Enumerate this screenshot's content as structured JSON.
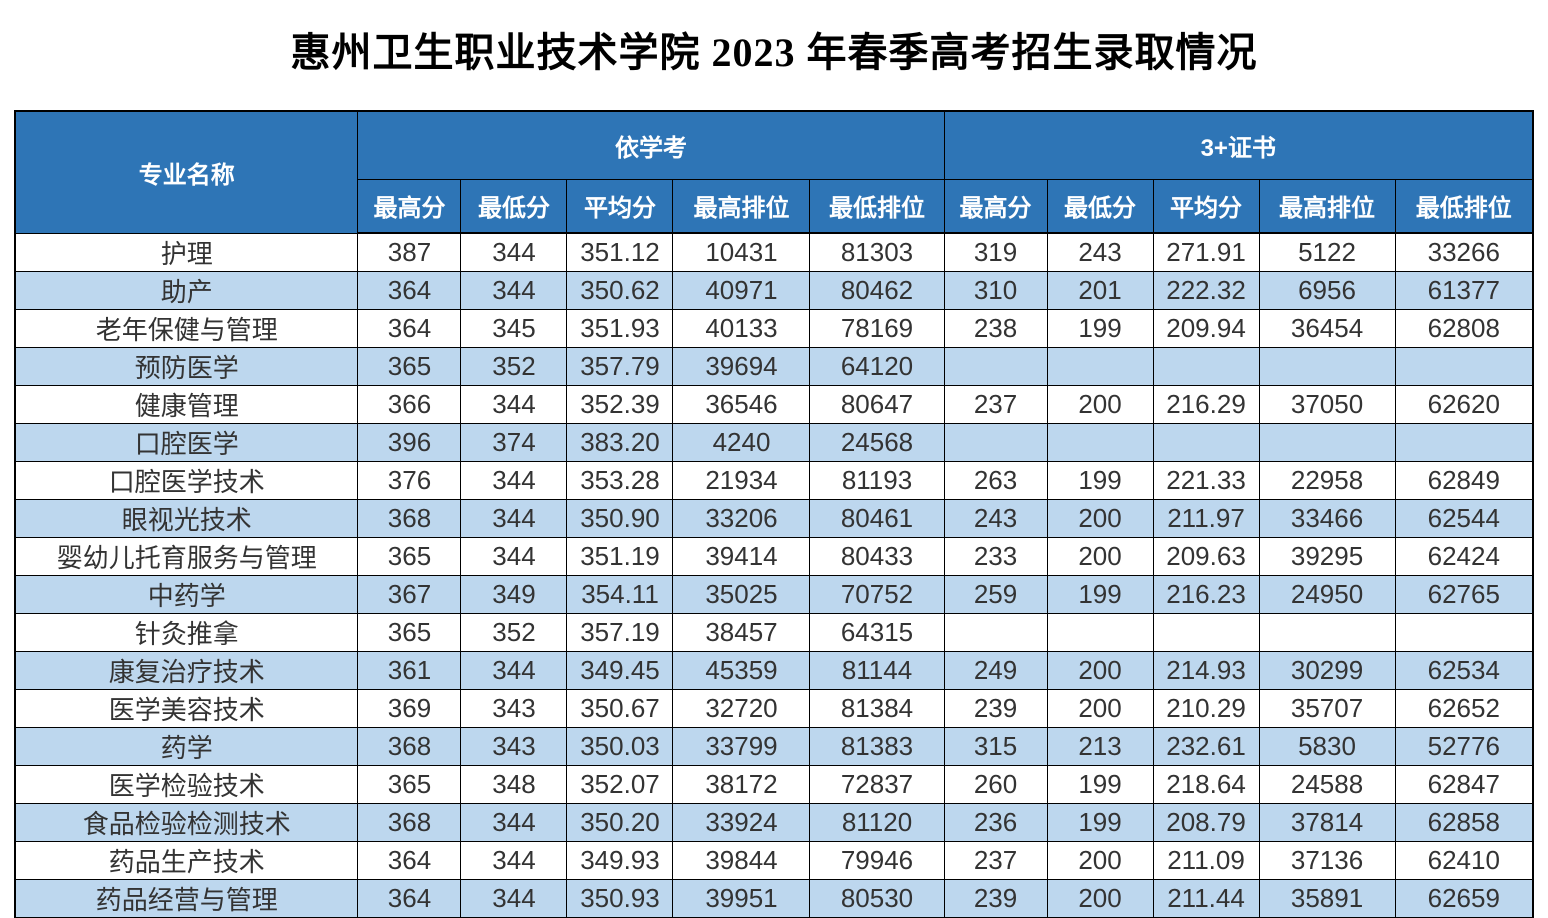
{
  "page": {
    "title": "惠州卫生职业技术学院 2023 年春季高考招生录取情况"
  },
  "colors": {
    "header_bg": "#2E75B6",
    "header_text": "#FFFFFF",
    "row_bg": "#FFFFFF",
    "row_alt_bg": "#BDD7EE",
    "border": "#000000",
    "data_text": "#333333"
  },
  "table": {
    "major_header": "专业名称",
    "groups": [
      {
        "label": "依学考",
        "subheaders": [
          "最高分",
          "最低分",
          "平均分",
          "最高排位",
          "最低排位"
        ]
      },
      {
        "label": "3+证书",
        "subheaders": [
          "最高分",
          "最低分",
          "平均分",
          "最高排位",
          "最低排位"
        ]
      }
    ],
    "rows": [
      {
        "major": "护理",
        "xk": [
          "387",
          "344",
          "351.12",
          "10431",
          "81303"
        ],
        "zs": [
          "319",
          "243",
          "271.91",
          "5122",
          "33266"
        ]
      },
      {
        "major": "助产",
        "xk": [
          "364",
          "344",
          "350.62",
          "40971",
          "80462"
        ],
        "zs": [
          "310",
          "201",
          "222.32",
          "6956",
          "61377"
        ]
      },
      {
        "major": "老年保健与管理",
        "xk": [
          "364",
          "345",
          "351.93",
          "40133",
          "78169"
        ],
        "zs": [
          "238",
          "199",
          "209.94",
          "36454",
          "62808"
        ]
      },
      {
        "major": "预防医学",
        "xk": [
          "365",
          "352",
          "357.79",
          "39694",
          "64120"
        ],
        "zs": [
          "",
          "",
          "",
          "",
          ""
        ]
      },
      {
        "major": "健康管理",
        "xk": [
          "366",
          "344",
          "352.39",
          "36546",
          "80647"
        ],
        "zs": [
          "237",
          "200",
          "216.29",
          "37050",
          "62620"
        ]
      },
      {
        "major": "口腔医学",
        "xk": [
          "396",
          "374",
          "383.20",
          "4240",
          "24568"
        ],
        "zs": [
          "",
          "",
          "",
          "",
          ""
        ]
      },
      {
        "major": "口腔医学技术",
        "xk": [
          "376",
          "344",
          "353.28",
          "21934",
          "81193"
        ],
        "zs": [
          "263",
          "199",
          "221.33",
          "22958",
          "62849"
        ]
      },
      {
        "major": "眼视光技术",
        "xk": [
          "368",
          "344",
          "350.90",
          "33206",
          "80461"
        ],
        "zs": [
          "243",
          "200",
          "211.97",
          "33466",
          "62544"
        ]
      },
      {
        "major": "婴幼儿托育服务与管理",
        "xk": [
          "365",
          "344",
          "351.19",
          "39414",
          "80433"
        ],
        "zs": [
          "233",
          "200",
          "209.63",
          "39295",
          "62424"
        ]
      },
      {
        "major": "中药学",
        "xk": [
          "367",
          "349",
          "354.11",
          "35025",
          "70752"
        ],
        "zs": [
          "259",
          "199",
          "216.23",
          "24950",
          "62765"
        ]
      },
      {
        "major": "针灸推拿",
        "xk": [
          "365",
          "352",
          "357.19",
          "38457",
          "64315"
        ],
        "zs": [
          "",
          "",
          "",
          "",
          ""
        ]
      },
      {
        "major": "康复治疗技术",
        "xk": [
          "361",
          "344",
          "349.45",
          "45359",
          "81144"
        ],
        "zs": [
          "249",
          "200",
          "214.93",
          "30299",
          "62534"
        ]
      },
      {
        "major": "医学美容技术",
        "xk": [
          "369",
          "343",
          "350.67",
          "32720",
          "81384"
        ],
        "zs": [
          "239",
          "200",
          "210.29",
          "35707",
          "62652"
        ]
      },
      {
        "major": "药学",
        "xk": [
          "368",
          "343",
          "350.03",
          "33799",
          "81383"
        ],
        "zs": [
          "315",
          "213",
          "232.61",
          "5830",
          "52776"
        ]
      },
      {
        "major": "医学检验技术",
        "xk": [
          "365",
          "348",
          "352.07",
          "38172",
          "72837"
        ],
        "zs": [
          "260",
          "199",
          "218.64",
          "24588",
          "62847"
        ]
      },
      {
        "major": "食品检验检测技术",
        "xk": [
          "368",
          "344",
          "350.20",
          "33924",
          "81120"
        ],
        "zs": [
          "236",
          "199",
          "208.79",
          "37814",
          "62858"
        ]
      },
      {
        "major": "药品生产技术",
        "xk": [
          "364",
          "344",
          "349.93",
          "39844",
          "79946"
        ],
        "zs": [
          "237",
          "200",
          "211.09",
          "37136",
          "62410"
        ]
      },
      {
        "major": "药品经营与管理",
        "xk": [
          "364",
          "344",
          "350.93",
          "39951",
          "80530"
        ],
        "zs": [
          "239",
          "200",
          "211.44",
          "35891",
          "62659"
        ]
      }
    ]
  }
}
